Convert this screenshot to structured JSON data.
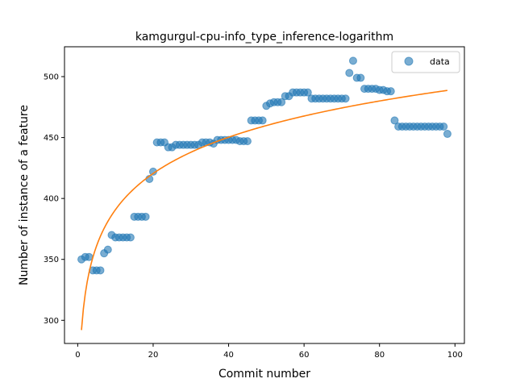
{
  "chart_data": {
    "type": "scatter",
    "title": "kamgurgul-cpu-info_type_inference-logarithm",
    "xlabel": "Commit number",
    "ylabel": "Number of instance of a feature",
    "xlim": [
      -3.5,
      102.5
    ],
    "ylim": [
      281,
      524.5
    ],
    "x_ticks": [
      0,
      20,
      40,
      60,
      80,
      100
    ],
    "y_ticks": [
      300,
      350,
      400,
      450,
      500
    ],
    "grid": false,
    "legend": {
      "position": "top-right",
      "entries": [
        "data"
      ]
    },
    "colors": {
      "scatter": "#1f77b4",
      "fit": "#ff7f0e"
    },
    "series": [
      {
        "name": "data",
        "kind": "scatter",
        "points": [
          [
            1,
            350
          ],
          [
            2,
            352
          ],
          [
            3,
            352
          ],
          [
            4,
            341
          ],
          [
            5,
            341
          ],
          [
            6,
            341
          ],
          [
            7,
            355
          ],
          [
            8,
            358
          ],
          [
            9,
            370
          ],
          [
            10,
            368
          ],
          [
            11,
            368
          ],
          [
            12,
            368
          ],
          [
            13,
            368
          ],
          [
            14,
            368
          ],
          [
            15,
            385
          ],
          [
            16,
            385
          ],
          [
            17,
            385
          ],
          [
            18,
            385
          ],
          [
            19,
            416
          ],
          [
            20,
            422
          ],
          [
            21,
            446
          ],
          [
            22,
            446
          ],
          [
            23,
            446
          ],
          [
            24,
            442
          ],
          [
            25,
            442
          ],
          [
            26,
            444
          ],
          [
            27,
            444
          ],
          [
            28,
            444
          ],
          [
            29,
            444
          ],
          [
            30,
            444
          ],
          [
            31,
            444
          ],
          [
            32,
            444
          ],
          [
            33,
            446
          ],
          [
            34,
            446
          ],
          [
            35,
            446
          ],
          [
            36,
            445
          ],
          [
            37,
            448
          ],
          [
            38,
            448
          ],
          [
            39,
            448
          ],
          [
            40,
            448
          ],
          [
            41,
            448
          ],
          [
            42,
            448
          ],
          [
            43,
            447
          ],
          [
            44,
            447
          ],
          [
            45,
            447
          ],
          [
            46,
            464
          ],
          [
            47,
            464
          ],
          [
            48,
            464
          ],
          [
            49,
            464
          ],
          [
            50,
            476
          ],
          [
            51,
            478
          ],
          [
            52,
            479
          ],
          [
            53,
            479
          ],
          [
            54,
            479
          ],
          [
            55,
            484
          ],
          [
            56,
            484
          ],
          [
            57,
            487
          ],
          [
            58,
            487
          ],
          [
            59,
            487
          ],
          [
            60,
            487
          ],
          [
            61,
            487
          ],
          [
            62,
            482
          ],
          [
            63,
            482
          ],
          [
            64,
            482
          ],
          [
            65,
            482
          ],
          [
            66,
            482
          ],
          [
            67,
            482
          ],
          [
            68,
            482
          ],
          [
            69,
            482
          ],
          [
            70,
            482
          ],
          [
            71,
            482
          ],
          [
            72,
            503
          ],
          [
            73,
            513
          ],
          [
            74,
            499
          ],
          [
            75,
            499
          ],
          [
            76,
            490
          ],
          [
            77,
            490
          ],
          [
            78,
            490
          ],
          [
            79,
            490
          ],
          [
            80,
            489
          ],
          [
            81,
            489
          ],
          [
            82,
            488
          ],
          [
            83,
            488
          ],
          [
            84,
            464
          ],
          [
            85,
            459
          ],
          [
            86,
            459
          ],
          [
            87,
            459
          ],
          [
            88,
            459
          ],
          [
            89,
            459
          ],
          [
            90,
            459
          ],
          [
            91,
            459
          ],
          [
            92,
            459
          ],
          [
            93,
            459
          ],
          [
            94,
            459
          ],
          [
            95,
            459
          ],
          [
            96,
            459
          ],
          [
            97,
            459
          ],
          [
            98,
            453
          ]
        ]
      },
      {
        "name": "",
        "kind": "line",
        "x_range": [
          1,
          98
        ],
        "model": "y = a + b*ln(x)",
        "a": 292.0,
        "b": 42.9
      }
    ]
  }
}
